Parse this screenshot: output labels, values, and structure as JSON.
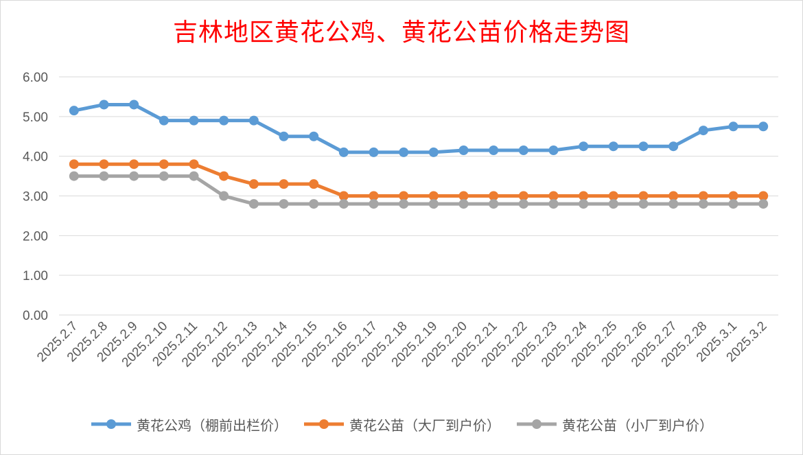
{
  "chart_data": {
    "type": "line",
    "title": "吉林地区黄花公鸡、黄花公苗价格走势图",
    "xlabel": "",
    "ylabel": "",
    "ylim": [
      0,
      6
    ],
    "yticks": [
      "0.00",
      "1.00",
      "2.00",
      "3.00",
      "4.00",
      "5.00",
      "6.00"
    ],
    "grid": true,
    "legend_position": "bottom",
    "categories": [
      "2025.2.7",
      "2025.2.8",
      "2025.2.9",
      "2025.2.10",
      "2025.2.11",
      "2025.2.12",
      "2025.2.13",
      "2025.2.14",
      "2025.2.15",
      "2025.2.16",
      "2025.2.17",
      "2025.2.18",
      "2025.2.19",
      "2025.2.20",
      "2025.2.21",
      "2025.2.22",
      "2025.2.23",
      "2025.2.24",
      "2025.2.25",
      "2025.2.26",
      "2025.2.27",
      "2025.2.28",
      "2025.3.1",
      "2025.3.2"
    ],
    "series": [
      {
        "name": "黄花公鸡（棚前出栏价）",
        "color": "#5b9bd5",
        "values": [
          5.15,
          5.3,
          5.3,
          4.9,
          4.9,
          4.9,
          4.9,
          4.5,
          4.5,
          4.1,
          4.1,
          4.1,
          4.1,
          4.15,
          4.15,
          4.15,
          4.15,
          4.25,
          4.25,
          4.25,
          4.25,
          4.65,
          4.75,
          4.75
        ]
      },
      {
        "name": "黄花公苗（大厂到户价）",
        "color": "#ed7d31",
        "values": [
          3.8,
          3.8,
          3.8,
          3.8,
          3.8,
          3.5,
          3.3,
          3.3,
          3.3,
          3.0,
          3.0,
          3.0,
          3.0,
          3.0,
          3.0,
          3.0,
          3.0,
          3.0,
          3.0,
          3.0,
          3.0,
          3.0,
          3.0,
          3.0
        ]
      },
      {
        "name": "黄花公苗（小厂到户价）",
        "color": "#a5a5a5",
        "values": [
          3.5,
          3.5,
          3.5,
          3.5,
          3.5,
          3.0,
          2.8,
          2.8,
          2.8,
          2.8,
          2.8,
          2.8,
          2.8,
          2.8,
          2.8,
          2.8,
          2.8,
          2.8,
          2.8,
          2.8,
          2.8,
          2.8,
          2.8,
          2.8
        ]
      }
    ]
  }
}
